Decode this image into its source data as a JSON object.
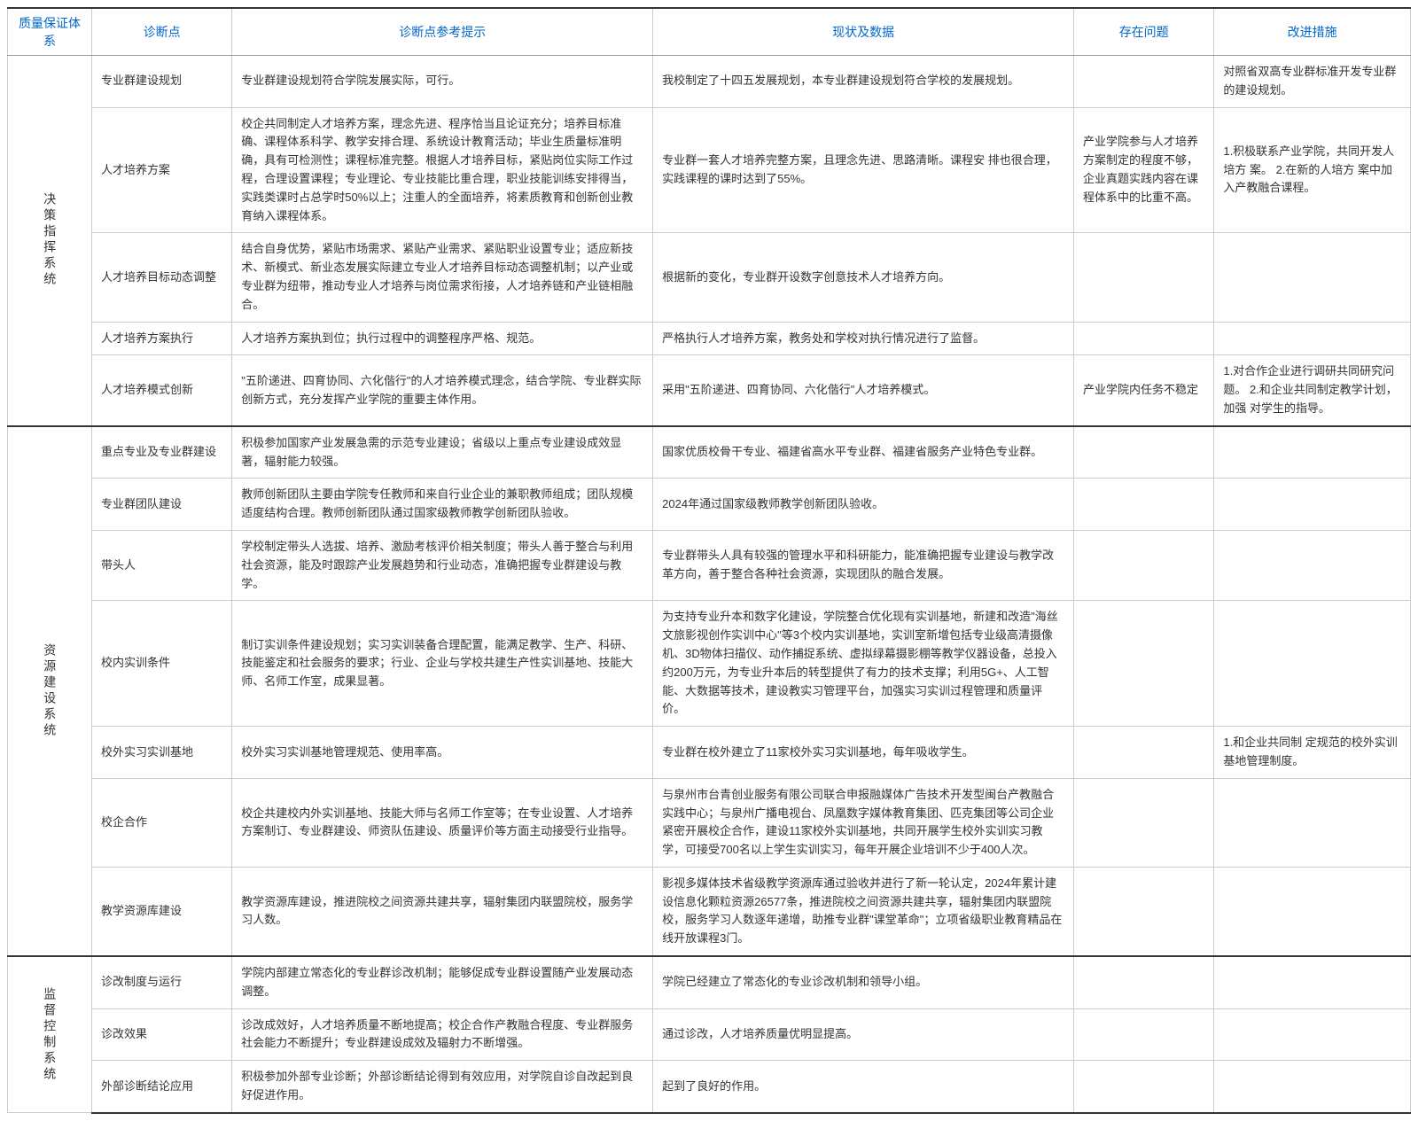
{
  "headers": {
    "col1": "质量保证体系",
    "col2": "诊断点",
    "col3": "诊断点参考提示",
    "col4": "现状及数据",
    "col5": "存在问题",
    "col6": "改进措施"
  },
  "sections": [
    {
      "system": "决策指挥系统",
      "rows": [
        {
          "point": "专业群建设规划",
          "hint": "专业群建设规划符合学院发展实际，可行。",
          "status": "我校制定了十四五发展规划，本专业群建设规划符合学校的发展规划。",
          "problem": "",
          "measure": "对照省双高专业群标准开发专业群的建设规划。"
        },
        {
          "point": "人才培养方案",
          "hint": "校企共同制定人才培养方案，理念先进、程序恰当且论证充分；培养目标准确、课程体系科学、教学安排合理、系统设计教育活动；毕业生质量标准明确，具有可检测性；课程标准完整。根据人才培养目标，紧贴岗位实际工作过程，合理设置课程；专业理论、专业技能比重合理，职业技能训练安排得当，实践类课时占总学时50%以上；注重人的全面培养，将素质教育和创新创业教育纳入课程体系。",
          "status": "专业群一套人才培养完整方案，且理念先进、思路清晰。课程安 排也很合理，实践课程的课时达到了55%。",
          "problem": "产业学院参与人才培养方案制定的程度不够，企业真题实践内容在课程体系中的比重不高。",
          "measure": "1.积极联系产业学院，共同开发人培方 案。\n2.在新的人培方 案中加入产教融合课程。"
        },
        {
          "point": "人才培养目标动态调整",
          "hint": "结合自身优势，紧贴市场需求、紧贴产业需求、紧贴职业设置专业；适应新技术、新模式、新业态发展实际建立专业人才培养目标动态调整机制；以产业或专业群为纽带，推动专业人才培养与岗位需求衔接，人才培养链和产业链相融合。",
          "status": "根据新的变化，专业群开设数字创意技术人才培养方向。",
          "problem": "",
          "measure": ""
        },
        {
          "point": "人才培养方案执行",
          "hint": "人才培养方案执到位；执行过程中的调整程序严格、规范。",
          "status": "严格执行人才培养方案，教务处和学校对执行情况进行了监督。",
          "problem": "",
          "measure": ""
        },
        {
          "point": "人才培养模式创新",
          "hint": "\"五阶递进、四育协同、六化偕行\"的人才培养模式理念，结合学院、专业群实际创新方式，充分发挥产业学院的重要主体作用。",
          "status": "采用\"五阶递进、四育协同、六化偕行\"人才培养模式。",
          "problem": "产业学院内任务不稳定",
          "measure": "1.对合作企业进行调研共同研究问题。\n2.和企业共同制定教学计划，加强 对学生的指导。"
        }
      ]
    },
    {
      "system": "资源建设系统",
      "rows": [
        {
          "point": "重点专业及专业群建设",
          "hint": "积极参加国家产业发展急需的示范专业建设；省级以上重点专业建设成效显著，辐射能力较强。",
          "status": "国家优质校骨干专业、福建省高水平专业群、福建省服务产业特色专业群。",
          "problem": "",
          "measure": ""
        },
        {
          "point": "专业群团队建设",
          "hint": "教师创新团队主要由学院专任教师和来自行业企业的兼职教师组成；团队规模适度结构合理。教师创新团队通过国家级教师教学创新团队验收。",
          "status": "2024年通过国家级教师教学创新团队验收。",
          "problem": "",
          "measure": ""
        },
        {
          "point": "带头人",
          "hint": "学校制定带头人选拔、培养、激励考核评价相关制度；带头人善于整合与利用社会资源，能及时跟踪产业发展趋势和行业动态，准确把握专业群建设与教学。",
          "status": "专业群带头人具有较强的管理水平和科研能力，能准确把握专业建设与教学改革方向，善于整合各种社会资源，实现团队的融合发展。",
          "problem": "",
          "measure": ""
        },
        {
          "point": "校内实训条件",
          "hint": "制订实训条件建设规划；实习实训装备合理配置，能满足教学、生产、科研、技能鉴定和社会服务的要求；行业、企业与学校共建生产性实训基地、技能大师、名师工作室，成果显著。",
          "status": "为支持专业升本和数字化建设，学院整合优化现有实训基地，新建和改造\"海丝文旅影视创作实训中心\"等3个校内实训基地，实训室新增包括专业级高清摄像机、3D物体扫描仪、动作捕捉系统、虚拟绿幕摄影棚等教学仪器设备，总投入约200万元，为专业升本后的转型提供了有力的技术支撑；利用5G+、人工智能、大数据等技术，建设教实习管理平台，加强实习实训过程管理和质量评价。",
          "problem": "",
          "measure": ""
        },
        {
          "point": "校外实习实训基地",
          "hint": "校外实习实训基地管理规范、使用率高。",
          "status": "专业群在校外建立了11家校外实习实训基地，每年吸收学生。",
          "problem": "",
          "measure": "1.和企业共同制 定规范的校外实训基地管理制度。"
        },
        {
          "point": "校企合作",
          "hint": "校企共建校内外实训基地、技能大师与名师工作室等；在专业设置、人才培养方案制订、专业群建设、师资队伍建设、质量评价等方面主动接受行业指导。",
          "status": "与泉州市台青创业服务有限公司联合申报融媒体广告技术开发型闽台产教融合实践中心；与泉州广播电视台、凤凰数字媒体教育集团、匹克集团等公司企业紧密开展校企合作，建设11家校外实训基地，共同开展学生校外实训实习教学，可接受700名以上学生实训实习，每年开展企业培训不少于400人次。",
          "problem": "",
          "measure": ""
        },
        {
          "point": "教学资源库建设",
          "hint": "教学资源库建设，推进院校之间资源共建共享，辐射集团内联盟院校，服务学习人数。",
          "status": "影视多媒体技术省级教学资源库通过验收并进行了新一轮认定，2024年累计建设信息化颗粒资源26577条，推进院校之间资源共建共享，辐射集团内联盟院校，服务学习人数逐年递增，助推专业群\"课堂革命\"；立项省级职业教育精品在线开放课程3门。",
          "problem": "",
          "measure": ""
        }
      ]
    },
    {
      "system": "监督控制系统",
      "rows": [
        {
          "point": "诊改制度与运行",
          "hint": "学院内部建立常态化的专业群诊改机制；能够促成专业群设置随产业发展动态调整。",
          "status": "学院已经建立了常态化的专业诊改机制和领导小组。",
          "problem": "",
          "measure": ""
        },
        {
          "point": "诊改效果",
          "hint": "诊改成效好，人才培养质量不断地提高；校企合作产教融合程度、专业群服务社会能力不断提升；专业群建设成效及辐射力不断增强。",
          "status": "通过诊改，人才培养质量优明显提高。",
          "problem": "",
          "measure": ""
        },
        {
          "point": "外部诊断结论应用",
          "hint": "积极参加外部专业诊断；外部诊断结论得到有效应用，对学院自诊自改起到良好促进作用。",
          "status": "起到了良好的作用。",
          "problem": "",
          "measure": ""
        }
      ]
    }
  ]
}
